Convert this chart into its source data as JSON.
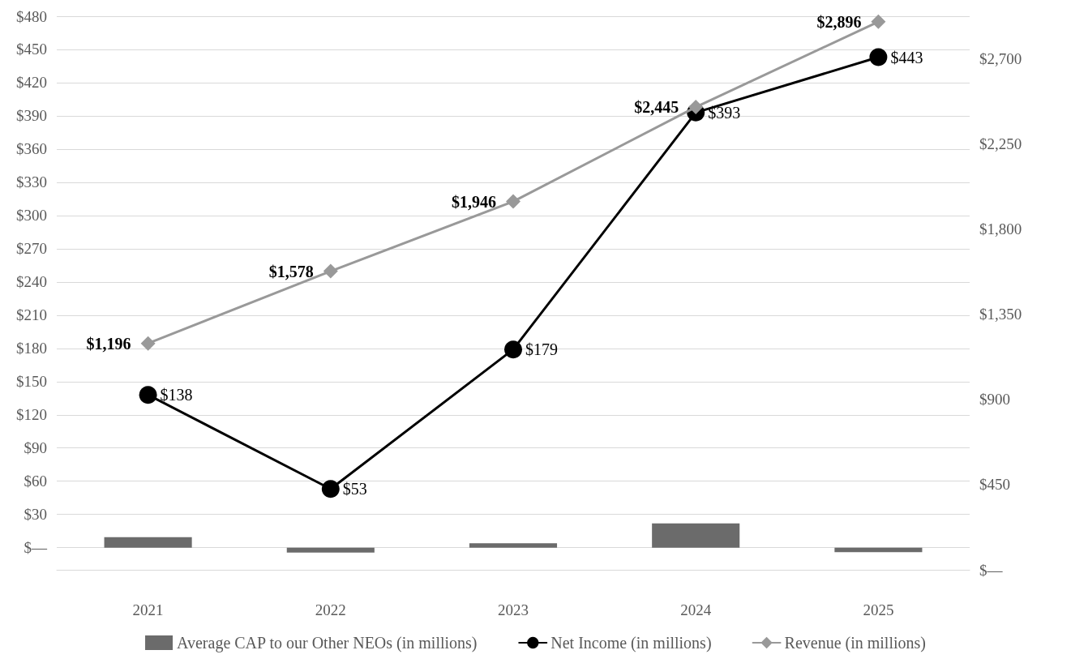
{
  "chart_data": {
    "type": "bar",
    "categories": [
      "2021",
      "2022",
      "2023",
      "2024",
      "2025"
    ],
    "series": [
      {
        "name": "Average CAP to our Other NEOs (in millions)",
        "color": "#6b6b6b",
        "values": [
          9.5,
          -4.4,
          4,
          22,
          -4
        ]
      },
      {
        "name": "Net Income (in millions)",
        "type": "line",
        "color": "#000000",
        "marker": "circle",
        "values": [
          138,
          53,
          179,
          393,
          443
        ],
        "value_labels": [
          "$138",
          "$53",
          "$179",
          "$393",
          "$443"
        ]
      },
      {
        "name": "Revenue (in millions)",
        "type": "line",
        "axis": "y2",
        "color": "#999999",
        "marker": "diamond",
        "values": [
          1196,
          1578,
          1946,
          2445,
          2896
        ],
        "value_labels": [
          "$1,196",
          "$1,578",
          "$1,946",
          "$2,445",
          "$2,896"
        ]
      }
    ],
    "ylim": [
      -20,
      480
    ],
    "yticks": [
      {
        "value": 0,
        "label": "$—"
      },
      {
        "value": 30,
        "label": "$30"
      },
      {
        "value": 60,
        "label": "$60"
      },
      {
        "value": 90,
        "label": "$90"
      },
      {
        "value": 120,
        "label": "$120"
      },
      {
        "value": 150,
        "label": "$150"
      },
      {
        "value": 180,
        "label": "$180"
      },
      {
        "value": 210,
        "label": "$210"
      },
      {
        "value": 240,
        "label": "$240"
      },
      {
        "value": 270,
        "label": "$270"
      },
      {
        "value": 300,
        "label": "$300"
      },
      {
        "value": 330,
        "label": "$330"
      },
      {
        "value": 360,
        "label": "$360"
      },
      {
        "value": 390,
        "label": "$390"
      },
      {
        "value": 420,
        "label": "$420"
      },
      {
        "value": 450,
        "label": "$450"
      },
      {
        "value": 480,
        "label": "$480"
      }
    ],
    "y2lim": [
      0,
      2925
    ],
    "y2ticks": [
      {
        "value": 0,
        "label": "$—"
      },
      {
        "value": 450,
        "label": "$450"
      },
      {
        "value": 900,
        "label": "$900"
      },
      {
        "value": 1350,
        "label": "$1,350"
      },
      {
        "value": 1800,
        "label": "$1,800"
      },
      {
        "value": 2250,
        "label": "$2,250"
      },
      {
        "value": 2700,
        "label": "$2,700"
      }
    ],
    "grid": "y",
    "legend": "bottom",
    "line_style": "solid"
  }
}
